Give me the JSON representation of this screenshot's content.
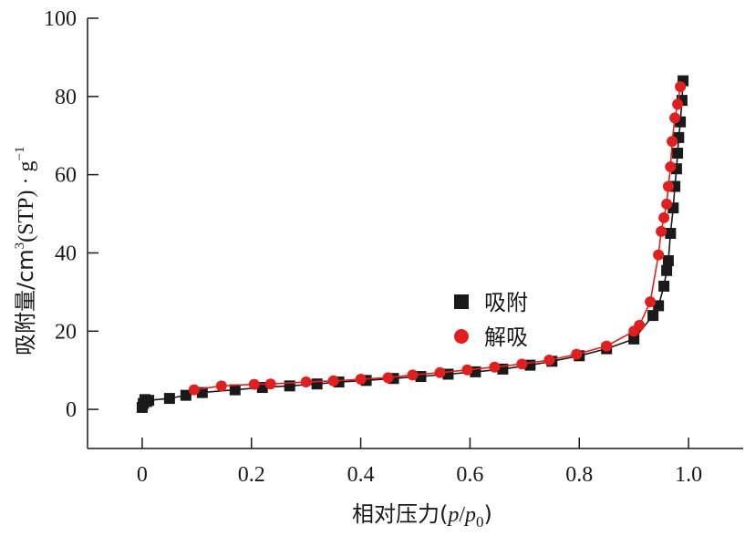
{
  "chart_data": {
    "type": "scatter",
    "xlabel": "相对压力(p/p0)",
    "ylabel": "吸附量/cm3(STP)·g−1",
    "xlim": [
      -0.1,
      1.1
    ],
    "ylim": [
      -10,
      100
    ],
    "xticks": [
      "0",
      "0.2",
      "0.4",
      "0.6",
      "0.8",
      "1.0"
    ],
    "yticks": [
      "0",
      "20",
      "40",
      "60",
      "80",
      "100"
    ],
    "grid": false,
    "legend_position": "center-right",
    "series": [
      {
        "name": "吸附",
        "color": "#1a1a1a",
        "marker": "square",
        "x": [
          0.0,
          0.002,
          0.005,
          0.008,
          0.012,
          0.05,
          0.08,
          0.11,
          0.17,
          0.22,
          0.27,
          0.32,
          0.36,
          0.41,
          0.46,
          0.51,
          0.56,
          0.61,
          0.66,
          0.71,
          0.75,
          0.8,
          0.85,
          0.9,
          0.935,
          0.945,
          0.955,
          0.96,
          0.963,
          0.967,
          0.972,
          0.975,
          0.978,
          0.98,
          0.982,
          0.985,
          0.988,
          0.99
        ],
        "y": [
          0.5,
          1.5,
          2.5,
          2.0,
          2.3,
          2.8,
          3.6,
          4.3,
          5.0,
          5.6,
          6.0,
          6.5,
          7.0,
          7.4,
          7.9,
          8.4,
          9.0,
          9.6,
          10.3,
          11.3,
          12.3,
          13.7,
          15.5,
          18.0,
          24.0,
          26.5,
          31.5,
          35.5,
          38.0,
          45.0,
          51.5,
          57.0,
          61.5,
          65.5,
          69.5,
          73.5,
          79.0,
          84.0
        ]
      },
      {
        "name": "解吸",
        "color": "#e02020",
        "marker": "circle",
        "x": [
          0.095,
          0.145,
          0.205,
          0.235,
          0.3,
          0.35,
          0.4,
          0.45,
          0.495,
          0.545,
          0.595,
          0.645,
          0.695,
          0.745,
          0.795,
          0.85,
          0.9,
          0.91,
          0.93,
          0.945,
          0.95,
          0.955,
          0.96,
          0.963,
          0.967,
          0.97,
          0.975,
          0.98,
          0.985
        ],
        "y": [
          5.0,
          6.0,
          6.4,
          6.5,
          7.0,
          7.3,
          7.7,
          8.1,
          8.8,
          9.4,
          10.1,
          10.8,
          11.6,
          12.6,
          14.1,
          16.2,
          20.0,
          21.5,
          27.5,
          39.5,
          45.5,
          49.0,
          52.5,
          57.0,
          62.0,
          68.5,
          74.5,
          78.0,
          82.5
        ]
      }
    ]
  }
}
